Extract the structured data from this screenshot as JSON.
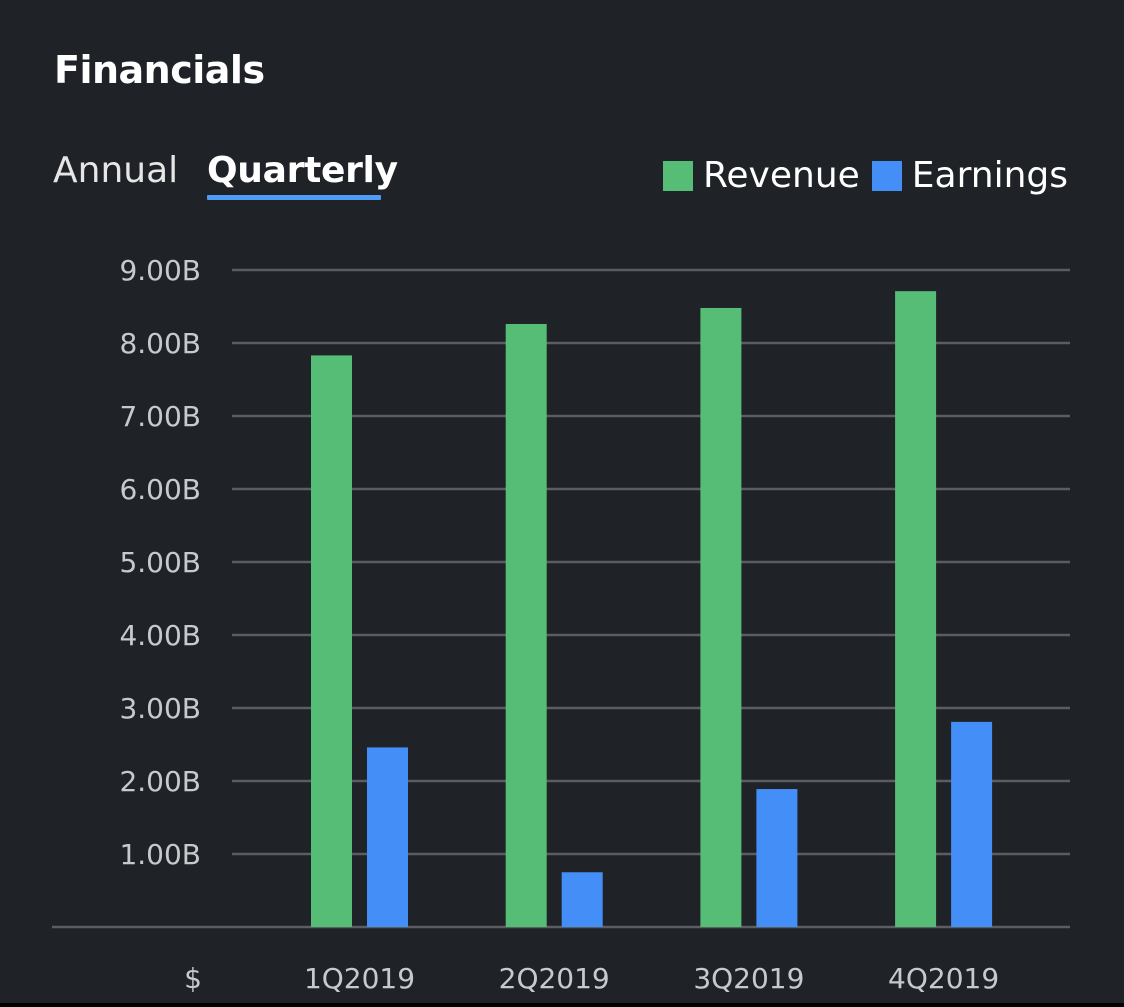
{
  "header": {
    "title": "Financials",
    "tabs": [
      {
        "label": "Annual",
        "active": false
      },
      {
        "label": "Quarterly",
        "active": true
      }
    ]
  },
  "colors": {
    "background": "#1f2227",
    "revenue": "#56bd77",
    "earnings": "#438ef7",
    "grid": "#5a5d62",
    "tab_underline": "#4f9cf5"
  },
  "chart_data": {
    "type": "bar",
    "title": "Financials",
    "categories": [
      "1Q2019",
      "2Q2019",
      "3Q2019",
      "4Q2019"
    ],
    "series": [
      {
        "name": "Revenue",
        "color": "#56bd77",
        "values": [
          7.83,
          8.26,
          8.48,
          8.71
        ]
      },
      {
        "name": "Earnings",
        "color": "#438ef7",
        "values": [
          2.46,
          0.75,
          1.89,
          2.81
        ]
      }
    ],
    "unit_suffix": "B",
    "currency_label": "$",
    "y_ticks": [
      "1.00B",
      "2.00B",
      "3.00B",
      "4.00B",
      "5.00B",
      "6.00B",
      "7.00B",
      "8.00B",
      "9.00B"
    ],
    "ylim": [
      0,
      9
    ],
    "grid": true,
    "legend": "top-right"
  }
}
